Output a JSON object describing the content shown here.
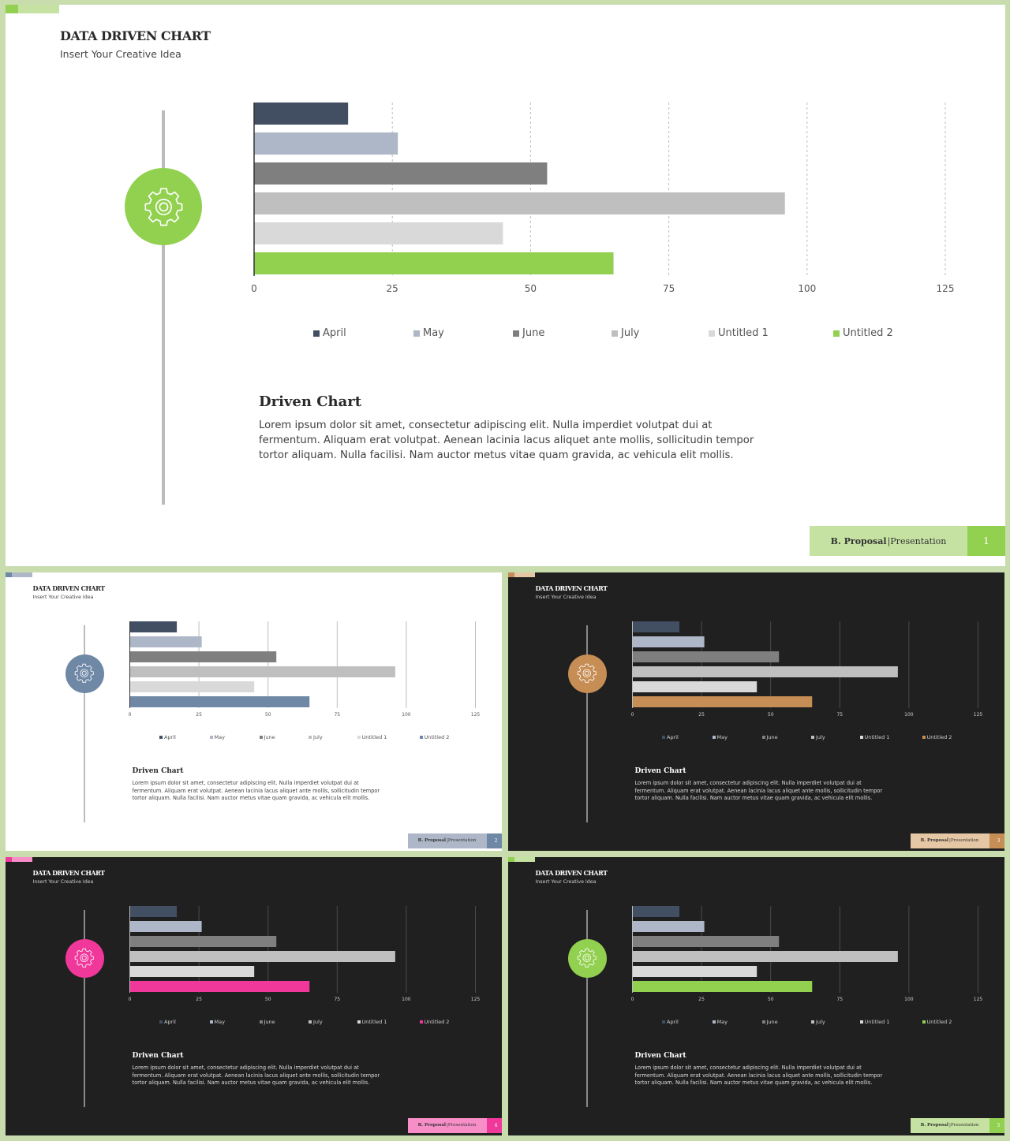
{
  "slide_text": {
    "title": "DATA DRIVEN CHART",
    "subtitle": "Insert Your Creative Idea",
    "body_title": "Driven Chart",
    "body_text": "Lorem ipsum dolor sit amet, consectetur adipiscing elit. Nulla imperdiet volutpat dui at fermentum. Aliquam erat volutpat. Aenean lacinia lacus aliquet ante mollis, sollicitudin tempor tortor aliquam. Nulla facilisi. Nam auctor metus vitae quam gravida, ac vehicula elit mollis.",
    "body_lines": [
      "Lorem ipsum dolor sit amet, consectetur adipiscing elit. Nulla imperdiet volutpat dui at",
      "fermentum. Aliquam erat volutpat. Aenean lacinia lacus aliquet ante mollis, sollicitudin tempor",
      "tortor aliquam. Nulla facilisi. Nam auctor metus vitae quam gravida, ac vehicula elit mollis."
    ],
    "footer_bold": "B. Proposal",
    "footer_separator": "| ",
    "footer_rest": "Presentation"
  },
  "chart_data": {
    "type": "bar",
    "orientation": "horizontal",
    "categories": [
      "April",
      "May",
      "June",
      "July",
      "Untitled 1",
      "Untitled 2"
    ],
    "values": [
      17,
      26,
      53,
      96,
      45,
      65
    ],
    "xlim": [
      0,
      125
    ],
    "ticks": [
      0,
      25,
      50,
      75,
      100,
      125
    ],
    "grid": "vertical-dashed",
    "legend": "bottom",
    "base_colors": [
      "#424e62",
      "#adb7c8",
      "#7f7f7f",
      "#bfbfbf",
      "#d9d9d9"
    ]
  },
  "slides": [
    {
      "theme": "light",
      "accent": "#92d050",
      "footer_light": "#c5e2a2",
      "page": "1",
      "gear_icon": "gear-icon"
    },
    {
      "theme": "light",
      "accent": "#6f88a6",
      "footer_light": "#adb7c8",
      "page": "2",
      "gear_icon": "gear-icon"
    },
    {
      "theme": "dark",
      "accent": "#c68d55",
      "footer_light": "#e6c7a5",
      "page": "3",
      "gear_icon": "gear-icon"
    },
    {
      "theme": "dark",
      "accent": "#f0389b",
      "footer_light": "#f78ec7",
      "page": "4",
      "gear_icon": "gear-icon"
    },
    {
      "theme": "dark",
      "accent": "#92d050",
      "footer_light": "#c5e2a2",
      "page": "5",
      "gear_icon": "gear-icon"
    }
  ]
}
